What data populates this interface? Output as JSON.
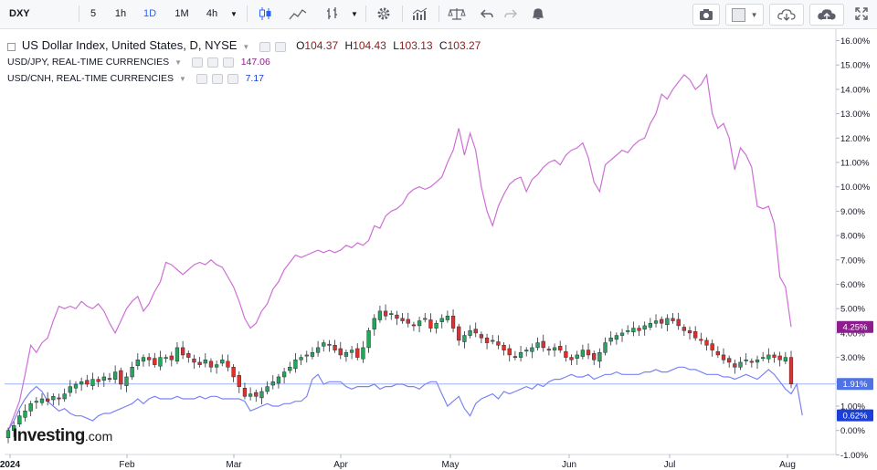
{
  "toolbar": {
    "symbol": "DXY",
    "intervals": [
      "5",
      "1h",
      "1D",
      "1M",
      "4h"
    ],
    "selected_interval": "1D"
  },
  "legend": {
    "main": {
      "name": "US Dollar Index, United States, D, NYSE",
      "open_label": "O",
      "open": "104.37",
      "high_label": "H",
      "high": "104.43",
      "low_label": "L",
      "low": "103.13",
      "close_label": "C",
      "close": "103.27"
    },
    "compare": [
      {
        "name": "USD/JPY, REAL-TIME CURRENCIES",
        "value": "147.06"
      },
      {
        "name": "USD/CNH, REAL-TIME CURRENCIES",
        "value": "7.17"
      }
    ]
  },
  "watermark": {
    "brand": "Investing",
    "suffix": ".com"
  },
  "colors": {
    "jpy": "#cd6fd6",
    "cnh": "#7b83f3",
    "up": "#26a65b",
    "down": "#e0302c",
    "jpy_badge": "#8c1d8c",
    "cnh_badge": "#1b3fd6",
    "dxy_badge": "#4f73e3"
  },
  "chart_data": {
    "type": "line",
    "title": "US Dollar Index, United States, D, NYSE",
    "y_unit": "% change",
    "ylim": [
      -1,
      16
    ],
    "y_ticks": [
      "16.00%",
      "15.00%",
      "14.00%",
      "13.00%",
      "12.00%",
      "11.00%",
      "10.00%",
      "9.00%",
      "8.00%",
      "7.00%",
      "6.00%",
      "5.00%",
      "4.00%",
      "3.00%",
      "2.00%",
      "1.00%",
      "0.00%",
      "-1.00%"
    ],
    "x_ticks": [
      "2024",
      "Feb",
      "Mar",
      "Apr",
      "May",
      "Jun",
      "Jul",
      "Aug"
    ],
    "last_value_labels": {
      "USD/JPY": "4.25%",
      "US Dollar Index": "1.91%",
      "USD/CNH": "0.62%"
    },
    "series": [
      {
        "name": "USD/JPY",
        "values": [
          0.0,
          0.6,
          1.2,
          2.3,
          3.5,
          3.2,
          3.6,
          3.8,
          4.5,
          5.1,
          5.0,
          5.1,
          5.0,
          5.3,
          5.1,
          5.0,
          5.2,
          4.9,
          4.4,
          4.0,
          4.5,
          5.0,
          5.3,
          5.5,
          4.9,
          5.2,
          5.7,
          6.1,
          6.9,
          6.8,
          6.6,
          6.4,
          6.6,
          6.8,
          6.9,
          6.8,
          7.0,
          6.8,
          6.7,
          6.3,
          5.9,
          5.3,
          4.6,
          4.2,
          4.4,
          4.9,
          5.2,
          5.8,
          6.1,
          6.6,
          6.9,
          7.2,
          7.1,
          7.2,
          7.3,
          7.4,
          7.3,
          7.4,
          7.3,
          7.4,
          7.6,
          7.5,
          7.7,
          7.6,
          7.8,
          8.4,
          8.3,
          8.8,
          9.0,
          9.1,
          9.3,
          9.7,
          9.9,
          10.0,
          9.9,
          10.0,
          10.2,
          10.4,
          11.0,
          11.5,
          12.4,
          11.3,
          12.2,
          11.5,
          10.0,
          9.0,
          8.4,
          9.2,
          9.7,
          10.1,
          10.3,
          10.4,
          9.8,
          10.3,
          10.5,
          10.8,
          11.0,
          11.1,
          10.9,
          11.3,
          11.5,
          11.6,
          11.8,
          11.2,
          10.2,
          9.8,
          10.9,
          11.1,
          11.3,
          11.5,
          11.4,
          11.7,
          11.9,
          12.0,
          12.6,
          13.0,
          13.8,
          13.6,
          14.0,
          14.3,
          14.6,
          14.4,
          14.0,
          14.2,
          14.6,
          13.0,
          12.4,
          12.6,
          12.0,
          10.7,
          11.6,
          11.3,
          10.8,
          9.2,
          9.1,
          9.2,
          8.5,
          6.3,
          5.9,
          4.25
        ]
      },
      {
        "name": "US Dollar Index",
        "values": [
          0.0,
          0.2,
          0.6,
          0.8,
          1.1,
          1.2,
          1.3,
          1.2,
          1.4,
          1.3,
          1.5,
          1.8,
          1.9,
          2.0,
          1.9,
          2.1,
          2.0,
          2.2,
          2.1,
          2.4,
          1.9,
          2.2,
          2.6,
          2.9,
          3.0,
          2.9,
          2.7,
          3.0,
          3.0,
          2.9,
          3.4,
          3.1,
          3.0,
          2.8,
          2.7,
          2.9,
          2.6,
          2.7,
          2.9,
          2.6,
          2.2,
          1.8,
          1.4,
          1.5,
          1.4,
          1.6,
          1.8,
          2.0,
          2.2,
          2.4,
          2.6,
          2.9,
          3.0,
          3.1,
          3.2,
          3.4,
          3.6,
          3.5,
          3.3,
          3.1,
          3.2,
          3.3,
          3.0,
          3.4,
          4.1,
          4.6,
          4.9,
          4.7,
          4.8,
          4.6,
          4.5,
          4.4,
          4.3,
          4.5,
          4.6,
          4.2,
          4.4,
          4.6,
          4.7,
          4.2,
          3.7,
          3.9,
          4.1,
          4.0,
          3.8,
          3.6,
          3.7,
          3.5,
          3.3,
          3.1,
          3.0,
          3.2,
          3.3,
          3.4,
          3.6,
          3.4,
          3.3,
          3.4,
          3.3,
          3.0,
          2.9,
          3.1,
          3.3,
          3.1,
          2.9,
          3.2,
          3.6,
          3.8,
          3.9,
          4.0,
          4.1,
          4.2,
          4.1,
          4.3,
          4.4,
          4.5,
          4.4,
          4.6,
          4.5,
          4.3,
          4.1,
          4.0,
          3.8,
          3.7,
          3.5,
          3.3,
          3.1,
          2.9,
          2.8,
          2.6,
          2.8,
          2.9,
          2.8,
          2.9,
          3.0,
          3.1,
          3.0,
          2.9,
          3.0,
          1.91
        ]
      },
      {
        "name": "USD/CNH",
        "values": [
          0.0,
          0.4,
          0.9,
          1.3,
          1.6,
          1.8,
          1.6,
          1.2,
          1.0,
          0.8,
          0.9,
          0.7,
          0.6,
          0.6,
          0.5,
          0.4,
          0.6,
          0.7,
          0.7,
          0.8,
          0.9,
          1.0,
          1.1,
          1.3,
          1.1,
          1.3,
          1.4,
          1.3,
          1.3,
          1.3,
          1.4,
          1.3,
          1.3,
          1.3,
          1.4,
          1.3,
          1.4,
          1.4,
          1.3,
          1.3,
          1.3,
          1.3,
          1.2,
          0.8,
          0.9,
          1.0,
          1.1,
          1.0,
          1.0,
          1.1,
          1.1,
          1.2,
          1.2,
          1.4,
          2.1,
          2.3,
          1.9,
          2.0,
          2.0,
          2.0,
          1.8,
          1.7,
          1.8,
          1.8,
          1.8,
          1.9,
          1.7,
          1.8,
          1.8,
          1.9,
          1.9,
          1.8,
          1.8,
          1.7,
          1.9,
          2.0,
          2.0,
          1.5,
          1.0,
          1.2,
          1.4,
          0.9,
          0.6,
          1.1,
          1.3,
          1.4,
          1.5,
          1.3,
          1.6,
          1.5,
          1.6,
          1.7,
          1.8,
          1.7,
          1.9,
          1.8,
          2.0,
          2.1,
          2.1,
          2.2,
          2.3,
          2.2,
          2.2,
          2.3,
          2.1,
          2.2,
          2.3,
          2.3,
          2.4,
          2.3,
          2.3,
          2.3,
          2.3,
          2.4,
          2.4,
          2.5,
          2.4,
          2.4,
          2.5,
          2.6,
          2.6,
          2.5,
          2.5,
          2.4,
          2.3,
          2.3,
          2.3,
          2.2,
          2.2,
          2.1,
          2.2,
          2.3,
          2.2,
          2.1,
          2.3,
          2.5,
          2.3,
          2.0,
          1.7,
          1.5,
          1.9,
          0.62
        ]
      }
    ]
  }
}
